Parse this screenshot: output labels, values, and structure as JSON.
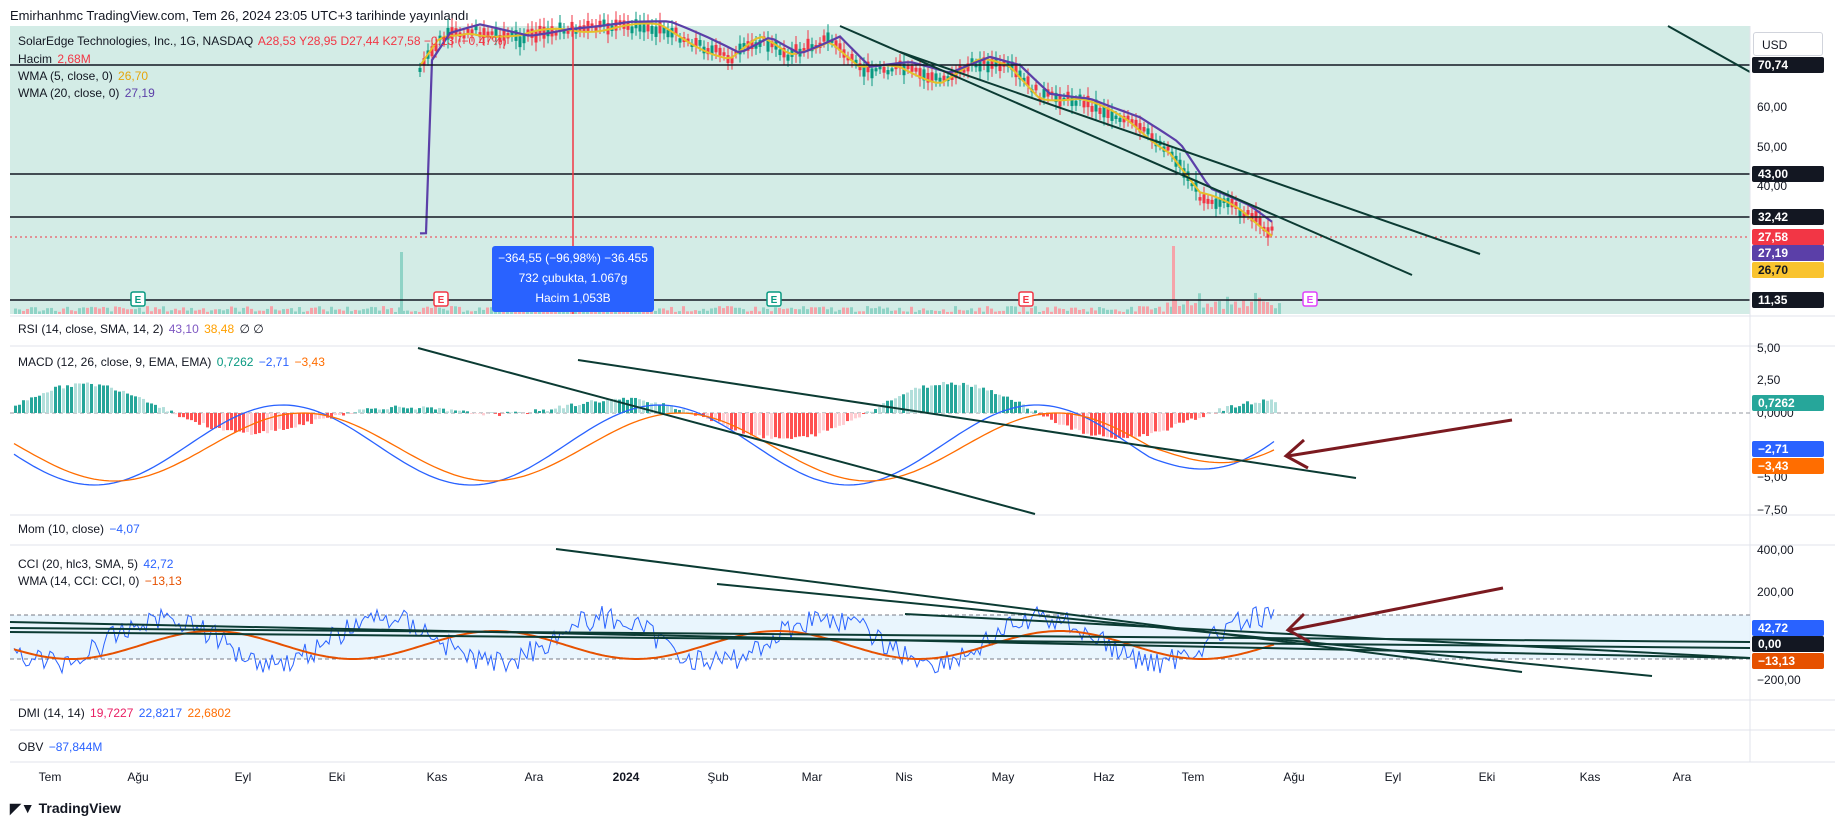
{
  "header": {
    "published": "Emirhanhmc TradingView.com, Tem 26, 2024 23:05 UTC+3 tarihinde yayınlandı"
  },
  "currency_button": "USD",
  "main_legend": {
    "symbol": "SolarEdge Technologies, Inc., 1G, NASDAQ",
    "ohlc": "A28,53  Y28,95  D27,44  K27,58  −0,13 (−0,47%)",
    "volume_label": "Hacim",
    "volume_value": "2,68M",
    "wma5_label": "WMA (5, close, 0)",
    "wma5_value": "26,70",
    "wma20_label": "WMA (20, close, 0)",
    "wma20_value": "27,19"
  },
  "measure_tooltip": {
    "line1": "−364,55 (−96,98%) −36.455",
    "line2": "732 çubukta, 1.067g",
    "line3": "Hacim 1,053B"
  },
  "indicator_legends": {
    "rsi": "RSI (14, close, SMA, 14, 2)",
    "rsi_v1": "43,10",
    "rsi_v2": "38,48",
    "rsi_v3": "∅  ∅",
    "macd": "MACD (12, 26, close, 9, EMA, EMA)",
    "macd_v1": "0,7262",
    "macd_v2": "−2,71",
    "macd_v3": "−3,43",
    "mom": "Mom (10, close)",
    "mom_v": "−4,07",
    "cci": "CCI (20, hlc3, SMA, 5)",
    "cci_v": "42,72",
    "wma_cci": "WMA (14, CCI: CCI, 0)",
    "wma_cci_v": "−13,13",
    "dmi": "DMI (14, 14)",
    "dmi_v1": "19,7227",
    "dmi_v2": "22,8217",
    "dmi_v3": "22,6802",
    "obv": "OBV",
    "obv_v": "−87,844M"
  },
  "colors": {
    "panel_bg": "#d3ece6",
    "up": "#089981",
    "down": "#f23645",
    "wma5": "#e5c02a",
    "wma20": "#5b3fa8",
    "macd_line": "#2962ff",
    "signal_line": "#ff6d00",
    "trendline": "#0b3b33",
    "arrow": "#7b1a20",
    "cci_line": "#2962ff",
    "cci_wma": "#e65100",
    "level_line": "#131722"
  },
  "footer": {
    "brand": "TradingView"
  },
  "chart_data": [
    {
      "type": "candlestick",
      "title": "SolarEdge Technologies, Inc., 1G, NASDAQ",
      "x_ticks": [
        "Tem",
        "Ağu",
        "Eyl",
        "Eki",
        "Kas",
        "Ara",
        "2024",
        "Şub",
        "Mar",
        "Nis",
        "May",
        "Haz",
        "Tem",
        "Ağu",
        "Eyl",
        "Eki",
        "Kas",
        "Ara"
      ],
      "y_ticks": [
        "60,00",
        "50,00",
        "40,00"
      ],
      "horizontal_levels": [
        "70,74",
        "43,00",
        "32,42",
        "11,35"
      ],
      "price_labels": [
        "27,58",
        "27,19",
        "26,70"
      ],
      "last_close": 27.58,
      "wma5_last": 26.7,
      "wma20_last": 27.19,
      "series": [
        {
          "name": "WMA (5, close, 0)",
          "x": [
            "Oca",
            "Şub",
            "Mar",
            "Nis",
            "May",
            "Haz",
            "Tem"
          ],
          "values": [
            78,
            66,
            66,
            66,
            56,
            47,
            30
          ]
        },
        {
          "name": "WMA (20, close, 0)",
          "x": [
            "Oca",
            "Şub",
            "Mar",
            "Nis",
            "May",
            "Haz",
            "Tem"
          ],
          "values": [
            80,
            68,
            68,
            66,
            58,
            50,
            29
          ]
        }
      ]
    },
    {
      "type": "bar",
      "title": "MACD (12, 26, close, 9, EMA, EMA)",
      "y_ticks": [
        "5,00",
        "2,50",
        "0,0000",
        "−5,00",
        "−7,50"
      ],
      "value_labels": [
        "0,7262",
        "−2,71",
        "−3,43"
      ],
      "histogram_last": 0.7262,
      "macd_last": -2.71,
      "signal_last": -3.43
    },
    {
      "type": "line",
      "title": "CCI (20, hlc3, SMA, 5)",
      "y_ticks": [
        "400,00",
        "200,00",
        "−200,00"
      ],
      "value_labels": [
        "42,72",
        "0,00",
        "−13,13"
      ],
      "cci_last": 42.72,
      "wma_last": -13.13,
      "bands": [
        100,
        -100
      ]
    }
  ]
}
